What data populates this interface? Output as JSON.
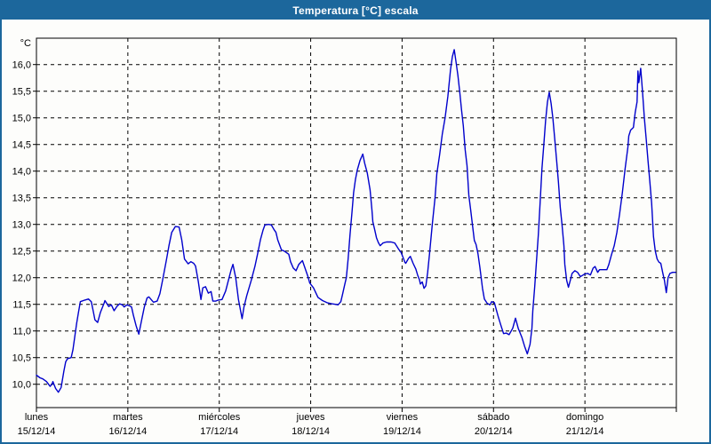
{
  "window": {
    "title": "Temperatura [°C] escala",
    "title_bar_color": "#1C679C",
    "border_color": "#1C679C",
    "background_color": "#FDFDFB"
  },
  "chart_data": {
    "type": "line",
    "title": "Temperatura [°C] escala",
    "grid": {
      "dashed": true,
      "color": "#000000",
      "vertical_per_day": true
    },
    "line_color": "#0000CC",
    "y_axis": {
      "unit_label": "°C",
      "min": 10.0,
      "max": 16.0,
      "step": 0.5,
      "decimal_separator": ",",
      "tick_labels": [
        "16,0",
        "15,5",
        "15,0",
        "14,5",
        "14,0",
        "13,5",
        "13,0",
        "12,5",
        "12,0",
        "11,5",
        "11,0",
        "10,5",
        "10,0"
      ]
    },
    "x_axis": {
      "days": [
        {
          "name": "lunes",
          "date": "15/12/14"
        },
        {
          "name": "martes",
          "date": "16/12/14"
        },
        {
          "name": "miércoles",
          "date": "17/12/14"
        },
        {
          "name": "jueves",
          "date": "18/12/14"
        },
        {
          "name": "viernes",
          "date": "19/12/14"
        },
        {
          "name": "sábado",
          "date": "20/12/14"
        },
        {
          "name": "domingo",
          "date": "21/12/14"
        }
      ]
    },
    "series": [
      {
        "name": "Temperatura",
        "x_unit": "days_since_start",
        "points": [
          [
            0.0,
            10.17
          ],
          [
            0.04,
            10.12
          ],
          [
            0.07,
            10.1
          ],
          [
            0.11,
            10.05
          ],
          [
            0.15,
            9.96
          ],
          [
            0.17,
            10.0
          ],
          [
            0.18,
            10.05
          ],
          [
            0.21,
            9.92
          ],
          [
            0.24,
            9.85
          ],
          [
            0.27,
            9.94
          ],
          [
            0.3,
            10.25
          ],
          [
            0.32,
            10.42
          ],
          [
            0.34,
            10.48
          ],
          [
            0.38,
            10.5
          ],
          [
            0.4,
            10.65
          ],
          [
            0.42,
            10.9
          ],
          [
            0.44,
            11.15
          ],
          [
            0.46,
            11.35
          ],
          [
            0.48,
            11.55
          ],
          [
            0.53,
            11.58
          ],
          [
            0.57,
            11.6
          ],
          [
            0.6,
            11.55
          ],
          [
            0.62,
            11.38
          ],
          [
            0.64,
            11.21
          ],
          [
            0.67,
            11.16
          ],
          [
            0.7,
            11.35
          ],
          [
            0.74,
            11.52
          ],
          [
            0.75,
            11.57
          ],
          [
            0.79,
            11.46
          ],
          [
            0.82,
            11.49
          ],
          [
            0.85,
            11.38
          ],
          [
            0.88,
            11.46
          ],
          [
            0.91,
            11.51
          ],
          [
            0.94,
            11.49
          ],
          [
            0.96,
            11.45
          ],
          [
            0.99,
            11.49
          ],
          [
            1.02,
            11.47
          ],
          [
            1.04,
            11.45
          ],
          [
            1.06,
            11.3
          ],
          [
            1.09,
            11.1
          ],
          [
            1.12,
            10.94
          ],
          [
            1.15,
            11.2
          ],
          [
            1.18,
            11.45
          ],
          [
            1.21,
            11.62
          ],
          [
            1.23,
            11.64
          ],
          [
            1.26,
            11.58
          ],
          [
            1.28,
            11.54
          ],
          [
            1.32,
            11.56
          ],
          [
            1.35,
            11.7
          ],
          [
            1.38,
            11.95
          ],
          [
            1.42,
            12.32
          ],
          [
            1.45,
            12.6
          ],
          [
            1.48,
            12.85
          ],
          [
            1.52,
            12.96
          ],
          [
            1.56,
            12.95
          ],
          [
            1.59,
            12.71
          ],
          [
            1.62,
            12.35
          ],
          [
            1.66,
            12.26
          ],
          [
            1.69,
            12.3
          ],
          [
            1.72,
            12.27
          ],
          [
            1.74,
            12.22
          ],
          [
            1.77,
            11.93
          ],
          [
            1.8,
            11.59
          ],
          [
            1.82,
            11.81
          ],
          [
            1.85,
            11.83
          ],
          [
            1.88,
            11.71
          ],
          [
            1.91,
            11.74
          ],
          [
            1.93,
            11.56
          ],
          [
            1.96,
            11.56
          ],
          [
            1.99,
            11.58
          ],
          [
            2.03,
            11.59
          ],
          [
            2.07,
            11.75
          ],
          [
            2.1,
            11.95
          ],
          [
            2.13,
            12.15
          ],
          [
            2.15,
            12.25
          ],
          [
            2.18,
            12.0
          ],
          [
            2.21,
            11.59
          ],
          [
            2.25,
            11.23
          ],
          [
            2.27,
            11.45
          ],
          [
            2.3,
            11.66
          ],
          [
            2.35,
            11.95
          ],
          [
            2.39,
            12.21
          ],
          [
            2.42,
            12.45
          ],
          [
            2.45,
            12.71
          ],
          [
            2.48,
            12.9
          ],
          [
            2.5,
            12.99
          ],
          [
            2.54,
            13.0
          ],
          [
            2.57,
            12.99
          ],
          [
            2.6,
            12.9
          ],
          [
            2.62,
            12.85
          ],
          [
            2.64,
            12.71
          ],
          [
            2.68,
            12.52
          ],
          [
            2.71,
            12.5
          ],
          [
            2.76,
            12.44
          ],
          [
            2.78,
            12.3
          ],
          [
            2.81,
            12.18
          ],
          [
            2.84,
            12.13
          ],
          [
            2.87,
            12.25
          ],
          [
            2.91,
            12.32
          ],
          [
            2.94,
            12.17
          ],
          [
            2.97,
            12.02
          ],
          [
            2.99,
            11.9
          ],
          [
            3.03,
            11.81
          ],
          [
            3.08,
            11.63
          ],
          [
            3.13,
            11.57
          ],
          [
            3.18,
            11.53
          ],
          [
            3.23,
            11.51
          ],
          [
            3.27,
            11.5
          ],
          [
            3.3,
            11.49
          ],
          [
            3.33,
            11.55
          ],
          [
            3.35,
            11.7
          ],
          [
            3.37,
            11.85
          ],
          [
            3.39,
            12.0
          ],
          [
            3.41,
            12.35
          ],
          [
            3.43,
            12.8
          ],
          [
            3.45,
            13.2
          ],
          [
            3.47,
            13.6
          ],
          [
            3.49,
            13.85
          ],
          [
            3.51,
            14.02
          ],
          [
            3.54,
            14.2
          ],
          [
            3.57,
            14.32
          ],
          [
            3.59,
            14.15
          ],
          [
            3.62,
            13.96
          ],
          [
            3.65,
            13.65
          ],
          [
            3.67,
            13.27
          ],
          [
            3.68,
            13.05
          ],
          [
            3.7,
            12.9
          ],
          [
            3.72,
            12.75
          ],
          [
            3.74,
            12.66
          ],
          [
            3.76,
            12.6
          ],
          [
            3.79,
            12.65
          ],
          [
            3.83,
            12.67
          ],
          [
            3.88,
            12.67
          ],
          [
            3.92,
            12.65
          ],
          [
            3.96,
            12.54
          ],
          [
            3.99,
            12.47
          ],
          [
            4.01,
            12.38
          ],
          [
            4.03,
            12.29
          ],
          [
            4.04,
            12.27
          ],
          [
            4.07,
            12.36
          ],
          [
            4.09,
            12.4
          ],
          [
            4.12,
            12.27
          ],
          [
            4.15,
            12.16
          ],
          [
            4.17,
            12.05
          ],
          [
            4.19,
            11.96
          ],
          [
            4.2,
            11.88
          ],
          [
            4.22,
            11.92
          ],
          [
            4.24,
            11.8
          ],
          [
            4.26,
            11.85
          ],
          [
            4.28,
            12.1
          ],
          [
            4.3,
            12.45
          ],
          [
            4.33,
            13.0
          ],
          [
            4.36,
            13.5
          ],
          [
            4.38,
            13.95
          ],
          [
            4.41,
            14.3
          ],
          [
            4.44,
            14.7
          ],
          [
            4.47,
            15.0
          ],
          [
            4.5,
            15.4
          ],
          [
            4.53,
            15.9
          ],
          [
            4.55,
            16.15
          ],
          [
            4.57,
            16.28
          ],
          [
            4.59,
            16.05
          ],
          [
            4.61,
            15.8
          ],
          [
            4.63,
            15.5
          ],
          [
            4.65,
            15.15
          ],
          [
            4.67,
            14.85
          ],
          [
            4.69,
            14.4
          ],
          [
            4.71,
            14.1
          ],
          [
            4.73,
            13.55
          ],
          [
            4.75,
            13.27
          ],
          [
            4.77,
            12.99
          ],
          [
            4.79,
            12.7
          ],
          [
            4.81,
            12.62
          ],
          [
            4.83,
            12.45
          ],
          [
            4.85,
            12.2
          ],
          [
            4.88,
            11.8
          ],
          [
            4.9,
            11.6
          ],
          [
            4.93,
            11.52
          ],
          [
            4.96,
            11.49
          ],
          [
            4.98,
            11.55
          ],
          [
            5.01,
            11.53
          ],
          [
            5.03,
            11.4
          ],
          [
            5.05,
            11.28
          ],
          [
            5.08,
            11.11
          ],
          [
            5.11,
            10.95
          ],
          [
            5.14,
            10.96
          ],
          [
            5.17,
            10.93
          ],
          [
            5.21,
            11.05
          ],
          [
            5.24,
            11.24
          ],
          [
            5.27,
            11.05
          ],
          [
            5.31,
            10.88
          ],
          [
            5.34,
            10.71
          ],
          [
            5.37,
            10.57
          ],
          [
            5.4,
            10.75
          ],
          [
            5.42,
            11.05
          ],
          [
            5.43,
            11.38
          ],
          [
            5.45,
            11.82
          ],
          [
            5.47,
            12.3
          ],
          [
            5.49,
            12.8
          ],
          [
            5.51,
            13.4
          ],
          [
            5.53,
            14.05
          ],
          [
            5.55,
            14.5
          ],
          [
            5.57,
            14.95
          ],
          [
            5.59,
            15.3
          ],
          [
            5.61,
            15.48
          ],
          [
            5.63,
            15.27
          ],
          [
            5.65,
            14.99
          ],
          [
            5.67,
            14.6
          ],
          [
            5.69,
            14.2
          ],
          [
            5.71,
            13.8
          ],
          [
            5.73,
            13.32
          ],
          [
            5.75,
            12.99
          ],
          [
            5.77,
            12.6
          ],
          [
            5.78,
            12.25
          ],
          [
            5.8,
            11.95
          ],
          [
            5.82,
            11.82
          ],
          [
            5.84,
            11.95
          ],
          [
            5.86,
            12.08
          ],
          [
            5.89,
            12.13
          ],
          [
            5.92,
            12.1
          ],
          [
            5.95,
            12.02
          ],
          [
            5.98,
            12.05
          ],
          [
            6.0,
            12.07
          ],
          [
            6.03,
            12.08
          ],
          [
            6.06,
            12.05
          ],
          [
            6.09,
            12.18
          ],
          [
            6.11,
            12.21
          ],
          [
            6.14,
            12.1
          ],
          [
            6.16,
            12.15
          ],
          [
            6.21,
            12.15
          ],
          [
            6.24,
            12.15
          ],
          [
            6.26,
            12.24
          ],
          [
            6.29,
            12.43
          ],
          [
            6.32,
            12.6
          ],
          [
            6.35,
            12.85
          ],
          [
            6.38,
            13.2
          ],
          [
            6.41,
            13.6
          ],
          [
            6.44,
            14.05
          ],
          [
            6.47,
            14.45
          ],
          [
            6.48,
            14.66
          ],
          [
            6.5,
            14.77
          ],
          [
            6.53,
            14.82
          ],
          [
            6.55,
            15.1
          ],
          [
            6.57,
            15.3
          ],
          [
            6.58,
            15.88
          ],
          [
            6.59,
            15.66
          ],
          [
            6.61,
            15.93
          ],
          [
            6.63,
            15.5
          ],
          [
            6.65,
            15.0
          ],
          [
            6.67,
            14.6
          ],
          [
            6.69,
            14.2
          ],
          [
            6.71,
            13.8
          ],
          [
            6.73,
            13.4
          ],
          [
            6.75,
            12.77
          ],
          [
            6.77,
            12.5
          ],
          [
            6.79,
            12.35
          ],
          [
            6.81,
            12.29
          ],
          [
            6.83,
            12.27
          ],
          [
            6.85,
            12.1
          ],
          [
            6.87,
            11.95
          ],
          [
            6.89,
            11.72
          ],
          [
            6.91,
            12.0
          ],
          [
            6.93,
            12.08
          ],
          [
            6.96,
            12.1
          ],
          [
            6.99,
            12.1
          ]
        ]
      }
    ]
  }
}
